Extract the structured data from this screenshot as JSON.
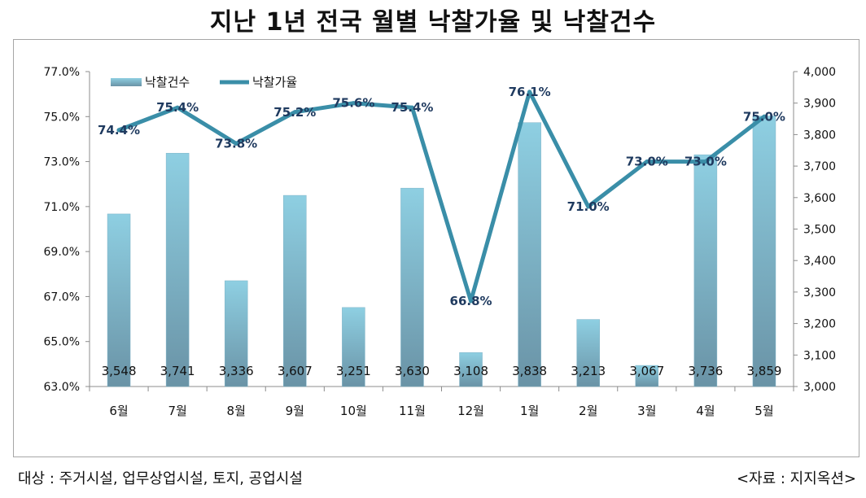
{
  "title": "지난 1년 전국 월별 낙찰가율 및 낙찰건수",
  "footer": {
    "note": "대상 : 주거시설, 업무상업시설, 토지, 공업시설",
    "source": "<자료 : 지지옥션>"
  },
  "colors": {
    "bar_top": "#8ecfe2",
    "bar_bottom": "#6a93a6",
    "line": "#3a8ea8",
    "label": "#1f3a5f"
  },
  "chart_data": {
    "type": "bar+line",
    "categories": [
      "6월",
      "7월",
      "8월",
      "9월",
      "10월",
      "11월",
      "12월",
      "1월",
      "2월",
      "3월",
      "4월",
      "5월"
    ],
    "series": [
      {
        "name": "낙찰건수",
        "type": "bar",
        "axis": "right",
        "values": [
          3548,
          3741,
          3336,
          3607,
          3251,
          3630,
          3108,
          3838,
          3213,
          3067,
          3736,
          3859
        ],
        "labels": [
          "3,548",
          "3,741",
          "3,336",
          "3,607",
          "3,251",
          "3,630",
          "3,108",
          "3,838",
          "3,213",
          "3,067",
          "3,736",
          "3,859"
        ]
      },
      {
        "name": "낙찰가율",
        "type": "line",
        "axis": "left",
        "values": [
          74.4,
          75.4,
          73.8,
          75.2,
          75.6,
          75.4,
          66.8,
          76.1,
          71.0,
          73.0,
          73.0,
          75.0
        ],
        "labels": [
          "74.4%",
          "75.4%",
          "73.8%",
          "75.2%",
          "75.6%",
          "75.4%",
          "66.8%",
          "76.1%",
          "71.0%",
          "73.0%",
          "73.0%",
          "75.0%"
        ]
      }
    ],
    "left_axis": {
      "min": 63.0,
      "max": 77.0,
      "ticks": [
        "77.0%",
        "75.0%",
        "73.0%",
        "71.0%",
        "69.0%",
        "67.0%",
        "65.0%",
        "63.0%"
      ]
    },
    "right_axis": {
      "min": 3000,
      "max": 4000,
      "ticks": [
        "4,000",
        "3,900",
        "3,800",
        "3,700",
        "3,600",
        "3,500",
        "3,400",
        "3,300",
        "3,200",
        "3,100",
        "3,000"
      ]
    },
    "legend": [
      "낙찰건수",
      "낙찰가율"
    ],
    "legend_position": "top-left"
  }
}
